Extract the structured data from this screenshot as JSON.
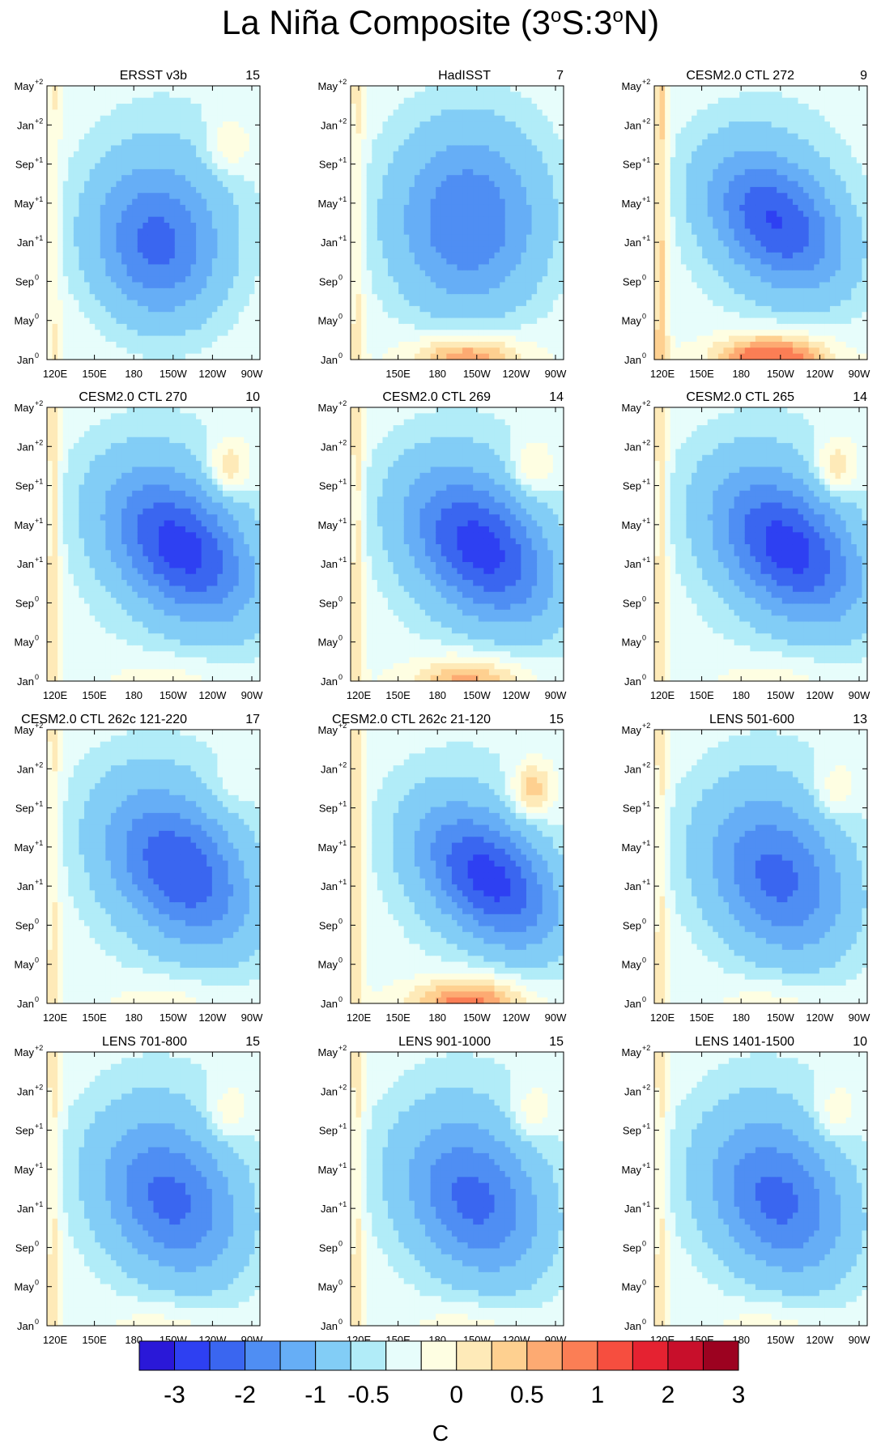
{
  "figure": {
    "title_parts": [
      "La Niña Composite (3",
      "o",
      "S:3",
      "o",
      "N)"
    ]
  },
  "chart_data": [
    {
      "type": "heatmap",
      "title": "ERSST v3b",
      "count": "15",
      "pattern": "obs1",
      "x_ticks": [
        "120E",
        "150E",
        "180",
        "150W",
        "120W",
        "90W"
      ],
      "y_ticks": [
        [
          "May",
          "+2"
        ],
        [
          "Jan",
          "+2"
        ],
        [
          "Sep",
          "+1"
        ],
        [
          "May",
          "+1"
        ],
        [
          "Jan",
          "+1"
        ],
        [
          "Sep",
          "0"
        ],
        [
          "May",
          "0"
        ],
        [
          "Jan",
          "0"
        ]
      ],
      "min_anomaly": -2.0,
      "max_anomaly": 0.4
    },
    {
      "type": "heatmap",
      "title": "HadISST",
      "count": "7",
      "pattern": "obs2",
      "x_ticks": [
        "",
        "150E",
        "180",
        "150W",
        "120W",
        "90W"
      ],
      "y_ticks": [
        [
          "May",
          "+2"
        ],
        [
          "Jan",
          "+2"
        ],
        [
          "Sep",
          "+1"
        ],
        [
          "May",
          "+1"
        ],
        [
          "Jan",
          "+1"
        ],
        [
          "Sep",
          "0"
        ],
        [
          "May",
          "0"
        ],
        [
          "Jan",
          "0"
        ]
      ],
      "min_anomaly": -2.0,
      "max_anomaly": 1.2
    },
    {
      "type": "heatmap",
      "title": "CESM2.0 CTL 272",
      "count": "9",
      "pattern": "warm",
      "x_ticks": [
        "120E",
        "150E",
        "180",
        "150W",
        "120W",
        "90W"
      ],
      "y_ticks": [
        [
          "May",
          "+2"
        ],
        [
          "Jan",
          "+2"
        ],
        [
          "Sep",
          "+1"
        ],
        [
          "May",
          "+1"
        ],
        [
          "Jan",
          "+1"
        ],
        [
          "Sep",
          "0"
        ],
        [
          "May",
          "0"
        ],
        [
          "Jan",
          "0"
        ]
      ],
      "min_anomaly": -2.5,
      "max_anomaly": 1.5
    },
    {
      "type": "heatmap",
      "title": "CESM2.0 CTL 270",
      "count": "10",
      "pattern": "strong",
      "x_ticks": [
        "120E",
        "150E",
        "180",
        "150W",
        "120W",
        "90W"
      ],
      "y_ticks": [
        [
          "May",
          "+2"
        ],
        [
          "Jan",
          "+2"
        ],
        [
          "Sep",
          "+1"
        ],
        [
          "May",
          "+1"
        ],
        [
          "Jan",
          "+1"
        ],
        [
          "Sep",
          "0"
        ],
        [
          "May",
          "0"
        ],
        [
          "Jan",
          "0"
        ]
      ],
      "min_anomaly": -2.5,
      "max_anomaly": 0.5
    },
    {
      "type": "heatmap",
      "title": "CESM2.0 CTL 269",
      "count": "14",
      "pattern": "strongwarm",
      "x_ticks": [
        "120E",
        "150E",
        "180",
        "150W",
        "120W",
        "90W"
      ],
      "y_ticks": [
        [
          "May",
          "+2"
        ],
        [
          "Jan",
          "+2"
        ],
        [
          "Sep",
          "+1"
        ],
        [
          "May",
          "+1"
        ],
        [
          "Jan",
          "+1"
        ],
        [
          "Sep",
          "0"
        ],
        [
          "May",
          "0"
        ],
        [
          "Jan",
          "0"
        ]
      ],
      "min_anomaly": -2.5,
      "max_anomaly": 0.8
    },
    {
      "type": "heatmap",
      "title": "CESM2.0 CTL 265",
      "count": "14",
      "pattern": "strong",
      "x_ticks": [
        "120E",
        "150E",
        "180",
        "150W",
        "120W",
        "90W"
      ],
      "y_ticks": [
        [
          "May",
          "+2"
        ],
        [
          "Jan",
          "+2"
        ],
        [
          "Sep",
          "+1"
        ],
        [
          "May",
          "+1"
        ],
        [
          "Jan",
          "+1"
        ],
        [
          "Sep",
          "0"
        ],
        [
          "May",
          "0"
        ],
        [
          "Jan",
          "0"
        ]
      ],
      "min_anomaly": -2.5,
      "max_anomaly": 0.5
    },
    {
      "type": "heatmap",
      "title": "CESM2.0 CTL 262c 121-220",
      "count": "17",
      "pattern": "moderate",
      "x_ticks": [
        "120E",
        "150E",
        "180",
        "150W",
        "120W",
        "90W"
      ],
      "y_ticks": [
        [
          "May",
          "+2"
        ],
        [
          "Jan",
          "+2"
        ],
        [
          "Sep",
          "+1"
        ],
        [
          "May",
          "+1"
        ],
        [
          "Jan",
          "+1"
        ],
        [
          "Sep",
          "0"
        ],
        [
          "May",
          "0"
        ],
        [
          "Jan",
          "0"
        ]
      ],
      "min_anomaly": -2.3,
      "max_anomaly": 0.4
    },
    {
      "type": "heatmap",
      "title": "CESM2.0 CTL 262c 21-120",
      "count": "15",
      "pattern": "strongwarm2",
      "x_ticks": [
        "120E",
        "150E",
        "180",
        "150W",
        "120W",
        "90W"
      ],
      "y_ticks": [
        [
          "May",
          "+2"
        ],
        [
          "Jan",
          "+2"
        ],
        [
          "Sep",
          "+1"
        ],
        [
          "May",
          "+1"
        ],
        [
          "Jan",
          "+1"
        ],
        [
          "Sep",
          "0"
        ],
        [
          "May",
          "0"
        ],
        [
          "Jan",
          "0"
        ]
      ],
      "min_anomaly": -2.5,
      "max_anomaly": 1.2
    },
    {
      "type": "heatmap",
      "title": "LENS 501-600",
      "count": "13",
      "pattern": "lens",
      "x_ticks": [
        "120E",
        "150E",
        "180",
        "150W",
        "120W",
        "90W"
      ],
      "y_ticks": [
        [
          "May",
          "+2"
        ],
        [
          "Jan",
          "+2"
        ],
        [
          "Sep",
          "+1"
        ],
        [
          "May",
          "+1"
        ],
        [
          "Jan",
          "+1"
        ],
        [
          "Sep",
          "0"
        ],
        [
          "May",
          "0"
        ],
        [
          "Jan",
          "0"
        ]
      ],
      "min_anomaly": -2.0,
      "max_anomaly": 0.4
    },
    {
      "type": "heatmap",
      "title": "LENS 701-800",
      "count": "15",
      "pattern": "lens",
      "x_ticks": [
        "120E",
        "150E",
        "180",
        "150W",
        "120W",
        "90W"
      ],
      "y_ticks": [
        [
          "May",
          "+2"
        ],
        [
          "Jan",
          "+2"
        ],
        [
          "Sep",
          "+1"
        ],
        [
          "May",
          "+1"
        ],
        [
          "Jan",
          "+1"
        ],
        [
          "Sep",
          "0"
        ],
        [
          "May",
          "0"
        ],
        [
          "Jan",
          "0"
        ]
      ],
      "min_anomaly": -2.0,
      "max_anomaly": 0.5
    },
    {
      "type": "heatmap",
      "title": "LENS 901-1000",
      "count": "15",
      "pattern": "lens",
      "x_ticks": [
        "120E",
        "150E",
        "180",
        "150W",
        "120W",
        "90W"
      ],
      "y_ticks": [
        [
          "May",
          "+2"
        ],
        [
          "Jan",
          "+2"
        ],
        [
          "Sep",
          "+1"
        ],
        [
          "May",
          "+1"
        ],
        [
          "Jan",
          "+1"
        ],
        [
          "Sep",
          "0"
        ],
        [
          "May",
          "0"
        ],
        [
          "Jan",
          "0"
        ]
      ],
      "min_anomaly": -2.0,
      "max_anomaly": 0.4
    },
    {
      "type": "heatmap",
      "title": "LENS 1401-1500",
      "count": "10",
      "pattern": "lens",
      "x_ticks": [
        "120E",
        "150E",
        "180",
        "150W",
        "120W",
        "90W"
      ],
      "y_ticks": [
        [
          "May",
          "+2"
        ],
        [
          "Jan",
          "+2"
        ],
        [
          "Sep",
          "+1"
        ],
        [
          "May",
          "+1"
        ],
        [
          "Jan",
          "+1"
        ],
        [
          "Sep",
          "0"
        ],
        [
          "May",
          "0"
        ],
        [
          "Jan",
          "0"
        ]
      ],
      "min_anomaly": -2.3,
      "max_anomaly": 0.4
    }
  ],
  "colorbar": {
    "colors": [
      "#2a18d8",
      "#2e40f2",
      "#3a66f0",
      "#4f8ef3",
      "#66aef6",
      "#82cdf6",
      "#b1ecf8",
      "#e7fdfb",
      "#fefee2",
      "#feeab8",
      "#fed090",
      "#fdaa72",
      "#fb7e55",
      "#f64e3f",
      "#e52231",
      "#c80f2b",
      "#9c0220"
    ],
    "labels": [
      "-3",
      "-2",
      "-1",
      "-0.5",
      "0",
      "0.5",
      "1",
      "2",
      "3"
    ],
    "units": "C"
  }
}
